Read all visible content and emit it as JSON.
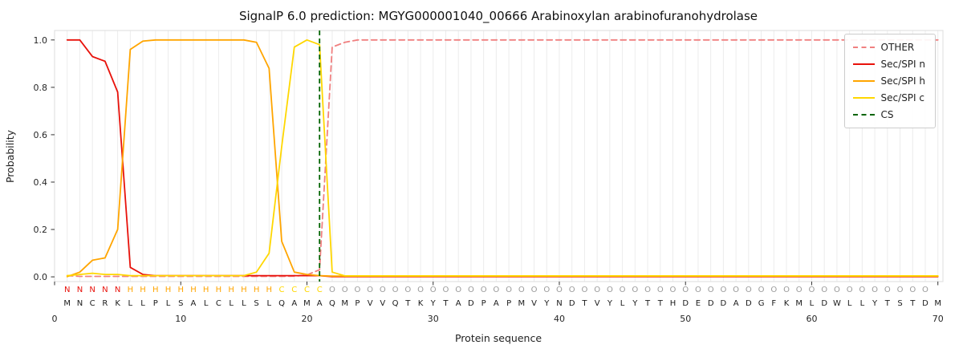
{
  "chart_data": {
    "type": "line",
    "title": "SignalP 6.0 prediction: MGYG000001040_00666 Arabinoxylan arabinofuranohydrolase",
    "xlabel": "Protein sequence",
    "ylabel": "Probability",
    "xlim": [
      0,
      70.4
    ],
    "ylim": [
      -0.02,
      1.04
    ],
    "x_ticks": [
      0,
      10,
      20,
      30,
      40,
      50,
      60,
      70
    ],
    "y_ticks": [
      "0.0",
      "0.2",
      "0.4",
      "0.6",
      "0.8",
      "1.0"
    ],
    "grid": true,
    "grid_color": "#ececec",
    "x_start": 1,
    "series": [
      {
        "name": "OTHER",
        "color": "#f08080",
        "dash": true,
        "values": [
          0.005,
          0.002,
          0.002,
          0.002,
          0.002,
          0.002,
          0.002,
          0.002,
          0.002,
          0.002,
          0.002,
          0.002,
          0.002,
          0.002,
          0.002,
          0.002,
          0.002,
          0.002,
          0.003,
          0.008,
          0.03,
          0.97,
          0.99,
          1.0,
          1.0,
          1.0,
          1.0,
          1.0,
          1.0,
          1.0,
          1.0,
          1.0,
          1.0,
          1.0,
          1.0,
          1.0,
          1.0,
          1.0,
          1.0,
          1.0,
          1.0,
          1.0,
          1.0,
          1.0,
          1.0,
          1.0,
          1.0,
          1.0,
          1.0,
          1.0,
          1.0,
          1.0,
          1.0,
          1.0,
          1.0,
          1.0,
          1.0,
          1.0,
          1.0,
          1.0,
          1.0,
          1.0,
          1.0,
          1.0,
          1.0,
          1.0,
          1.0,
          1.0,
          1.0,
          1.0
        ]
      },
      {
        "name": "Sec/SPI n",
        "color": "#e8120b",
        "dash": false,
        "values": [
          1.0,
          1.0,
          0.93,
          0.91,
          0.78,
          0.04,
          0.01,
          0.005,
          0.005,
          0.005,
          0.005,
          0.005,
          0.005,
          0.005,
          0.005,
          0.005,
          0.005,
          0.005,
          0.005,
          0.005,
          0.005,
          0.001,
          0.001,
          0.001,
          0.001,
          0.001,
          0.001,
          0.001,
          0.001,
          0.001,
          0.001,
          0.001,
          0.001,
          0.001,
          0.001,
          0.001,
          0.001,
          0.001,
          0.001,
          0.001,
          0.001,
          0.001,
          0.001,
          0.001,
          0.001,
          0.001,
          0.001,
          0.001,
          0.001,
          0.001,
          0.001,
          0.001,
          0.001,
          0.001,
          0.001,
          0.001,
          0.001,
          0.001,
          0.001,
          0.001,
          0.001,
          0.001,
          0.001,
          0.001,
          0.001,
          0.001,
          0.001,
          0.001,
          0.001,
          0.001
        ]
      },
      {
        "name": "Sec/SPI h",
        "color": "#ffa500",
        "dash": false,
        "values": [
          0.001,
          0.02,
          0.07,
          0.08,
          0.2,
          0.96,
          0.995,
          1.0,
          1.0,
          1.0,
          1.0,
          1.0,
          1.0,
          1.0,
          1.0,
          0.99,
          0.88,
          0.15,
          0.02,
          0.01,
          0.005,
          0.003,
          0.003,
          0.003,
          0.003,
          0.003,
          0.003,
          0.003,
          0.003,
          0.003,
          0.003,
          0.003,
          0.003,
          0.003,
          0.003,
          0.003,
          0.003,
          0.003,
          0.003,
          0.003,
          0.003,
          0.003,
          0.003,
          0.003,
          0.003,
          0.003,
          0.003,
          0.003,
          0.003,
          0.003,
          0.003,
          0.003,
          0.003,
          0.003,
          0.003,
          0.003,
          0.003,
          0.003,
          0.003,
          0.003,
          0.003,
          0.003,
          0.003,
          0.003,
          0.003,
          0.003,
          0.003,
          0.003,
          0.003,
          0.003
        ]
      },
      {
        "name": "Sec/SPI c",
        "color": "#ffd700",
        "dash": false,
        "values": [
          0.005,
          0.01,
          0.015,
          0.01,
          0.01,
          0.005,
          0.005,
          0.005,
          0.005,
          0.005,
          0.005,
          0.005,
          0.005,
          0.005,
          0.005,
          0.02,
          0.1,
          0.55,
          0.97,
          1.0,
          0.98,
          0.02,
          0.004,
          0.004,
          0.004,
          0.004,
          0.004,
          0.004,
          0.004,
          0.004,
          0.004,
          0.004,
          0.004,
          0.004,
          0.004,
          0.004,
          0.004,
          0.004,
          0.004,
          0.004,
          0.004,
          0.004,
          0.004,
          0.004,
          0.004,
          0.004,
          0.004,
          0.004,
          0.004,
          0.004,
          0.004,
          0.004,
          0.004,
          0.004,
          0.004,
          0.004,
          0.004,
          0.004,
          0.004,
          0.004,
          0.004,
          0.004,
          0.004,
          0.004,
          0.004,
          0.004,
          0.004,
          0.004,
          0.004,
          0.004
        ]
      }
    ],
    "cs_marker": {
      "label": "CS",
      "x": 21,
      "color": "#006400",
      "dash": true
    },
    "sequence": "MNCRKLLPLSALCLLSLQAMAQMPVVQTKYTADPAPMVYNDTVYLYTTHDEDDADGFKMLDWLLYTSTDM",
    "region_labels": "NNNNNHHHHHHHHHHHHCCCCOOOOOOOOOOOOOOOOOOOOOOOOOOOOOOOOOOOOOOOOOOOOOOOO",
    "region_colors": {
      "N": "#e8120b",
      "H": "#ffa500",
      "C": "#ffd700",
      "O": "#9a9a9a"
    },
    "sequence_color": "#1a1a1a",
    "legend_position": "upper right"
  },
  "legend": {
    "items": [
      {
        "label": "OTHER",
        "color": "#f08080",
        "dash": true
      },
      {
        "label": "Sec/SPI n",
        "color": "#e8120b",
        "dash": false
      },
      {
        "label": "Sec/SPI h",
        "color": "#ffa500",
        "dash": false
      },
      {
        "label": "Sec/SPI c",
        "color": "#ffd700",
        "dash": false
      },
      {
        "label": "CS",
        "color": "#006400",
        "dash": true
      }
    ]
  }
}
